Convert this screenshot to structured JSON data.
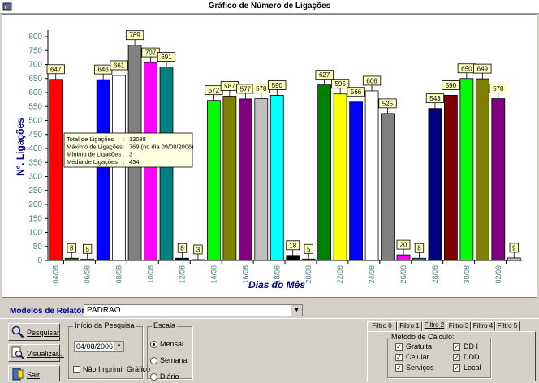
{
  "window": {
    "title": "Gráfico de Número de Ligações"
  },
  "chart_data": {
    "type": "bar",
    "xlabel": "Dias do Mês",
    "ylabel": "Nº. Ligações",
    "ylim": [
      0,
      800
    ],
    "y_ticks": [
      0,
      50,
      100,
      150,
      200,
      250,
      300,
      350,
      400,
      450,
      500,
      550,
      600,
      650,
      700,
      750,
      800
    ],
    "x_tick_labels": [
      "04/08",
      "06/08",
      "08/08",
      "10/08",
      "12/08",
      "14/08",
      "16/08",
      "18/08",
      "20/08",
      "22/08",
      "24/08",
      "26/08",
      "28/08",
      "30/08",
      "02/09"
    ],
    "values": [
      647,
      8,
      5,
      646,
      661,
      769,
      707,
      691,
      8,
      3,
      572,
      587,
      577,
      578,
      590,
      18,
      5,
      627,
      595,
      566,
      606,
      525,
      20,
      8,
      543,
      590,
      650,
      649,
      578,
      9
    ],
    "colors": [
      "#ff0000",
      "#008000",
      "#c0c0c0",
      "#0000ff",
      "#ffffff",
      "#808080",
      "#ff00ff",
      "#008080",
      "#000080",
      "#800000",
      "#00ff00",
      "#808000",
      "#800080",
      "#c0c0c0",
      "#00ffff",
      "#000000",
      "#ff0000",
      "#008000",
      "#ffff00",
      "#0000ff",
      "#ffffff",
      "#808080",
      "#ff00ff",
      "#008080",
      "#000080",
      "#800000",
      "#00ff00",
      "#808000",
      "#800080",
      "#c0c0c0"
    ],
    "grid": false,
    "tooltip": [
      {
        "label": "Total de Ligações",
        "value": "13038"
      },
      {
        "label": "Máximo de Ligações",
        "value": "769  (no dia 09/08/2006)"
      },
      {
        "label": "Mínimo de Ligações",
        "value": "3"
      },
      {
        "label": "Média de Ligações",
        "value": "434"
      }
    ]
  },
  "models": {
    "label": "Modelos de Relatórios:",
    "value": "PADRAO"
  },
  "buttons": {
    "search": "Pesquisar",
    "view": "Visualizar...",
    "exit": "Sair"
  },
  "start": {
    "title": "Início da Pesquisa",
    "date": "04/08/2006",
    "no_print": "Não Imprimir  Gráfico"
  },
  "scale": {
    "title": "Escala",
    "options": [
      "Mensal",
      "Semanal",
      "Diário"
    ],
    "selected": "Mensal"
  },
  "tabs": [
    "Filtro 0",
    "Filtro 1",
    "Filtro 2",
    "Filtro 3",
    "Filtro 4",
    "Filtro 5"
  ],
  "selected_tab": "Filtro 2",
  "calc": {
    "title": "Método de Cálculo:",
    "left": [
      "Gratuita",
      "Celular",
      "Serviços"
    ],
    "right": [
      "DD I",
      "DDD",
      "Local"
    ]
  }
}
